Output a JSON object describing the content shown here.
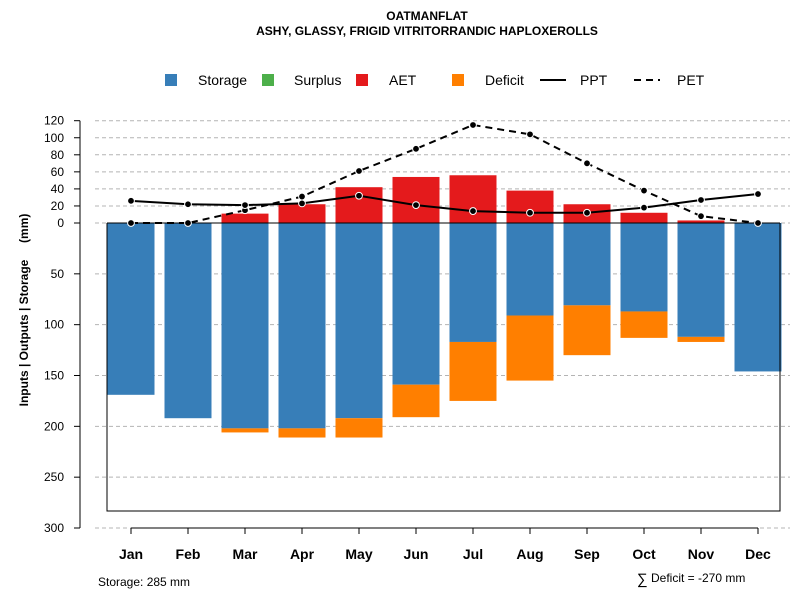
{
  "chart_data": {
    "type": "bar",
    "title": "OATMANFLAT",
    "subtitle": "ASHY, GLASSY, FRIGID VITRITORRANDIC HAPLOXEROLLS",
    "ylabel": "Inputs | Outputs | Storage     (mm)",
    "categories": [
      "Jan",
      "Feb",
      "Mar",
      "Apr",
      "May",
      "Jun",
      "Jul",
      "Aug",
      "Sep",
      "Oct",
      "Nov",
      "Dec"
    ],
    "upper_axis": {
      "range": [
        0,
        120
      ],
      "ticks": [
        "0",
        "20",
        "40",
        "60",
        "80",
        "100",
        "120"
      ]
    },
    "lower_axis": {
      "range": [
        0,
        300
      ],
      "ticks": [
        "0",
        "50",
        "100",
        "150",
        "200",
        "250",
        "300"
      ]
    },
    "legend": [
      {
        "label": "Storage",
        "kind": "box",
        "color": "#377EB8"
      },
      {
        "label": "Surplus",
        "kind": "box",
        "color": "#4DAF4A"
      },
      {
        "label": "AET",
        "kind": "box",
        "color": "#E41A1C"
      },
      {
        "label": "Deficit",
        "kind": "box",
        "color": "#FF7F00"
      },
      {
        "label": "PPT",
        "kind": "solid",
        "color": "#000000"
      },
      {
        "label": "PET",
        "kind": "dashed",
        "color": "#000000"
      }
    ],
    "series": [
      {
        "name": "AET",
        "color": "#E41A1C",
        "values": [
          0,
          0,
          11,
          22,
          42,
          54,
          56,
          38,
          22,
          12,
          3,
          0
        ]
      },
      {
        "name": "Storage",
        "color": "#377EB8",
        "values": [
          169,
          192,
          202,
          202,
          192,
          159,
          117,
          91,
          81,
          87,
          112,
          146
        ]
      },
      {
        "name": "Deficit",
        "color": "#FF7F00",
        "values": [
          0,
          0,
          4,
          9,
          19,
          32,
          58,
          64,
          49,
          26,
          5,
          0
        ]
      },
      {
        "name": "Surplus",
        "color": "#4DAF4A",
        "values": [
          0,
          0,
          0,
          0,
          0,
          0,
          0,
          0,
          0,
          0,
          0,
          0
        ]
      },
      {
        "name": "PPT",
        "color": "#000000",
        "values": [
          26,
          22,
          21,
          23,
          32,
          21,
          14,
          12,
          12,
          18,
          27,
          34
        ]
      },
      {
        "name": "PET",
        "color": "#000000",
        "values": [
          0,
          0,
          15,
          31,
          61,
          87,
          115,
          104,
          70,
          38,
          8,
          0
        ]
      }
    ],
    "grid": true,
    "legend_position": "top"
  },
  "footer": {
    "storage_note": "Storage: 285 mm",
    "deficit_symbol": "∑",
    "deficit_note": "Deficit = -270 mm"
  }
}
